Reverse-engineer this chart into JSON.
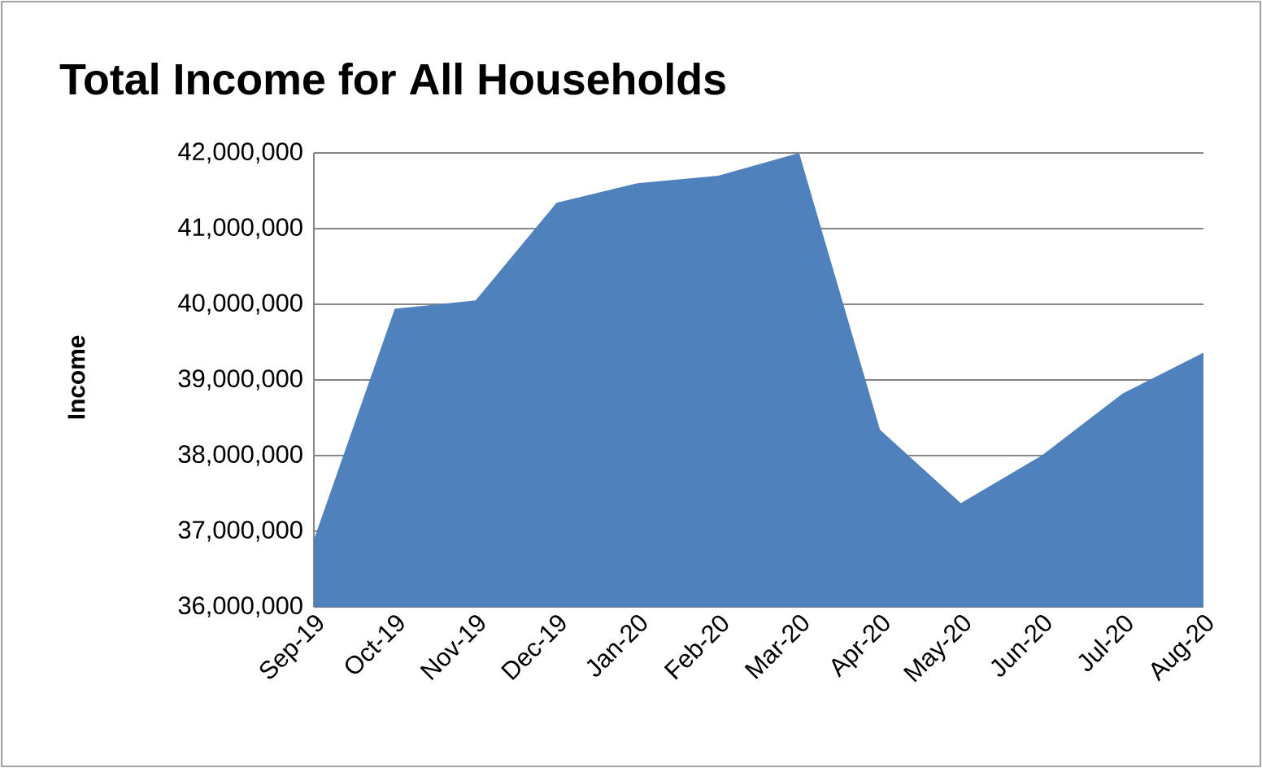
{
  "chart_data": {
    "type": "area",
    "title": "Total Income for All Households",
    "ylabel": "Income",
    "categories": [
      "Sep-19",
      "Oct-19",
      "Nov-19",
      "Dec-19",
      "Jan-20",
      "Feb-20",
      "Mar-20",
      "Apr-20",
      "May-20",
      "Jun-20",
      "Jul-20",
      "Aug-20"
    ],
    "values": [
      36890000,
      39940000,
      40050000,
      41340000,
      41600000,
      41700000,
      42000000,
      38340000,
      37370000,
      38000000,
      38820000,
      39360000
    ],
    "color": "#4f81bd",
    "ylim": [
      36000000,
      42000000
    ],
    "yticks": [
      {
        "value": 36000000,
        "label": "36,000,000"
      },
      {
        "value": 37000000,
        "label": "37,000,000"
      },
      {
        "value": 38000000,
        "label": "38,000,000"
      },
      {
        "value": 39000000,
        "label": "39,000,000"
      },
      {
        "value": 40000000,
        "label": "40,000,000"
      },
      {
        "value": 41000000,
        "label": "41,000,000"
      },
      {
        "value": 42000000,
        "label": "42,000,000"
      }
    ],
    "grid": "y"
  }
}
